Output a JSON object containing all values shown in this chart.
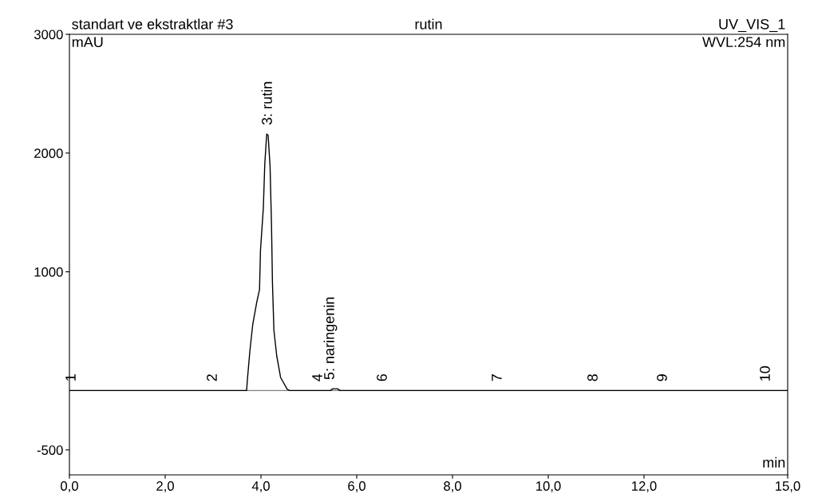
{
  "chart_data": {
    "type": "line",
    "title": "rutin",
    "ylabel": "mAU",
    "xlabel": "min",
    "x": [
      0,
      3.7,
      3.72,
      3.77,
      3.83,
      3.91,
      3.97,
      3.99,
      4.05,
      4.08,
      4.12,
      4.15,
      4.19,
      4.22,
      4.24,
      4.27,
      4.33,
      4.41,
      4.55,
      4.6,
      5.45,
      5.5,
      5.6,
      5.65,
      15
    ],
    "series": [
      {
        "color": "#000000",
        "values": [
          0,
          0,
          107,
          340,
          560,
          740,
          850,
          1180,
          1540,
          1910,
          2160,
          2150,
          1890,
          1400,
          910,
          510,
          290,
          110,
          10,
          0,
          0,
          15,
          15,
          0,
          0
        ]
      }
    ],
    "xlim": [
      0,
      15
    ],
    "ylim": [
      -710,
      3000
    ],
    "xticks": [
      {
        "value": 0,
        "label": "0,0"
      },
      {
        "value": 2,
        "label": "2,0"
      },
      {
        "value": 4,
        "label": "4,0"
      },
      {
        "value": 6,
        "label": "6,0"
      },
      {
        "value": 8,
        "label": "8,0"
      },
      {
        "value": 10,
        "label": "10,0"
      },
      {
        "value": 12,
        "label": "12,0"
      },
      {
        "value": 15,
        "label": "15,0"
      }
    ],
    "yticks": [
      -500,
      1000,
      2000,
      3000
    ],
    "grid": false,
    "legend": false,
    "marker": "none",
    "line_style": "solid",
    "annotations": [
      "standart ve ekstraktlar #3",
      "UV_VIS_1",
      "WVL:254 nm",
      {
        "text": "1",
        "x": 0.05,
        "y": 0
      },
      {
        "text": "2",
        "x": 3.0,
        "y": 0
      },
      {
        "text": "3: rutin",
        "x": 4.15,
        "y": 2160
      },
      {
        "text": "4",
        "x": 5.2,
        "y": 0
      },
      {
        "text": "5: naringenin",
        "x": 5.45,
        "y": 15
      },
      {
        "text": "6",
        "x": 6.55,
        "y": 0
      },
      {
        "text": "7",
        "x": 8.95,
        "y": 0
      },
      {
        "text": "8",
        "x": 10.95,
        "y": 0
      },
      {
        "text": "9",
        "x": 12.4,
        "y": 0
      },
      {
        "text": "10",
        "x": 14.55,
        "y": 0
      }
    ]
  }
}
